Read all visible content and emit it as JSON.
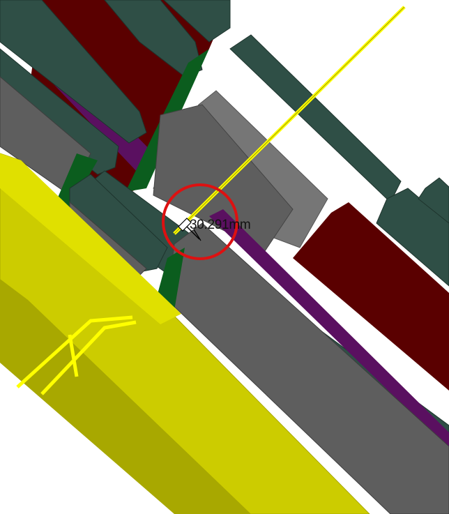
{
  "viewport": {
    "background": "#ffffff"
  },
  "colors": {
    "dark_green_steel": "#2f4f46",
    "dark_green_steel_edge": "#1e342d",
    "bright_green": "#0b5d1e",
    "maroon": "#5a0000",
    "purple": "#5a1060",
    "gray_block": "#5e5e5e",
    "light_gray_block": "#767676",
    "yellow_pipe": "#ffff00",
    "yellow_beam": "#cccc00",
    "yellow_beam_dark": "#a8a800",
    "marker_red": "#dd1111"
  },
  "measurement": {
    "label": "30.291mm",
    "marker": "red-circle-marker",
    "cursor": "measure-cursor-icon"
  }
}
